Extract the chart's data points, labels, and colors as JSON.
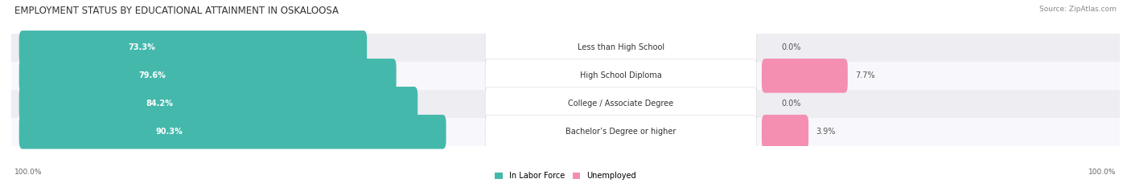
{
  "title": "EMPLOYMENT STATUS BY EDUCATIONAL ATTAINMENT IN OSKALOOSA",
  "source": "Source: ZipAtlas.com",
  "categories": [
    "Less than High School",
    "High School Diploma",
    "College / Associate Degree",
    "Bachelor’s Degree or higher"
  ],
  "labor_force": [
    73.3,
    79.6,
    84.2,
    90.3
  ],
  "unemployed": [
    0.0,
    7.7,
    0.0,
    3.9
  ],
  "labor_force_color": "#45B8AC",
  "unemployed_color": "#F48FB1",
  "background_color": "#FFFFFF",
  "row_bg_even": "#EDEDF2",
  "row_bg_odd": "#F8F8FC",
  "title_fontsize": 8.5,
  "source_fontsize": 6.5,
  "label_fontsize": 7,
  "value_fontsize": 7,
  "axis_label": "100.0%",
  "legend_labor": "In Labor Force",
  "legend_unemployed": "Unemployed"
}
